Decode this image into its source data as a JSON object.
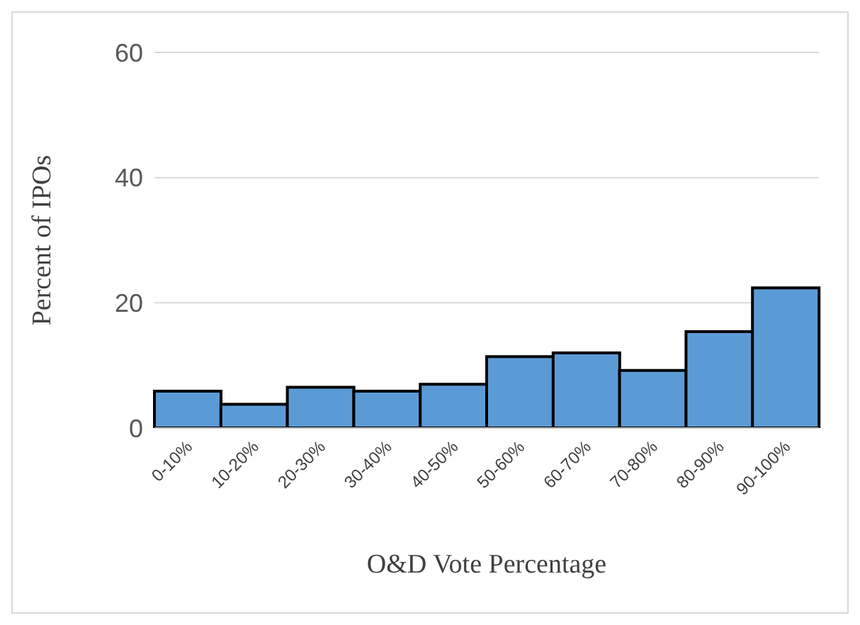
{
  "chart_data": {
    "type": "bar",
    "xlabel": "O&D Vote Percentage",
    "ylabel": "Percent of IPOs",
    "categories": [
      "0-10%",
      "10-20%",
      "20-30%",
      "30-40%",
      "40-50%",
      "50-60%",
      "60-70%",
      "70-80%",
      "80-90%",
      "90-100%"
    ],
    "values": [
      5.9,
      3.8,
      6.5,
      5.9,
      7.0,
      11.4,
      12.0,
      9.2,
      15.4,
      22.4
    ],
    "color": "#5b9bd5",
    "ylim": [
      0,
      60
    ],
    "yticks": [
      0,
      20,
      40,
      60
    ],
    "grid": "y"
  }
}
